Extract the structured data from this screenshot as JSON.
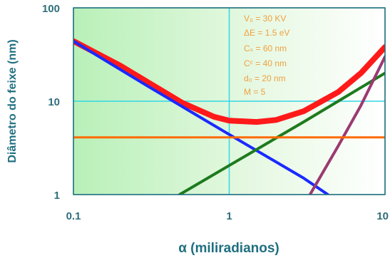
{
  "chart_data": {
    "type": "line",
    "xlabel": "α (miliradianos)",
    "ylabel": "Diâmetro do feixe (nm)",
    "x_scale": "log",
    "y_scale": "log",
    "xlim": [
      0.1,
      10
    ],
    "ylim": [
      1,
      100
    ],
    "x_ticks": [
      "0.1",
      "1",
      "10"
    ],
    "y_ticks": [
      "1",
      "10",
      "100"
    ],
    "grid": true,
    "parameters": [
      "V₀ = 30 KV",
      "ΔE = 1.5 eV",
      "Cₛ = 60 nm",
      "Cᶜ = 40 nm",
      "d₀ = 20 nm",
      "M = 5"
    ],
    "series": [
      {
        "color": "#ff1a1a",
        "x": [
          0.1,
          0.2,
          0.3,
          0.5,
          0.8,
          1.0,
          1.5,
          2.0,
          3.0,
          5.0,
          7.0,
          10.0
        ],
        "y": [
          44,
          24,
          16,
          9.6,
          6.8,
          6.2,
          6.0,
          6.3,
          7.8,
          12.5,
          20,
          38
        ]
      },
      {
        "color": "#1a2aff",
        "x": [
          0.1,
          0.3,
          1.0,
          3.0,
          4.3
        ],
        "y": [
          44,
          14.5,
          4.4,
          1.5,
          1.0
        ]
      },
      {
        "color": "#1e7a1e",
        "x": [
          0.48,
          1.0,
          3.0,
          10.0
        ],
        "y": [
          1.0,
          2.05,
          6.0,
          20
        ]
      },
      {
        "color": "#9b3a72",
        "x": [
          3.3,
          5.0,
          7.0,
          10.0
        ],
        "y": [
          1.0,
          3.3,
          9.0,
          30
        ]
      },
      {
        "color": "#ff6a00",
        "x": [
          0.1,
          10.0
        ],
        "y": [
          4.1,
          4.1
        ]
      }
    ]
  }
}
